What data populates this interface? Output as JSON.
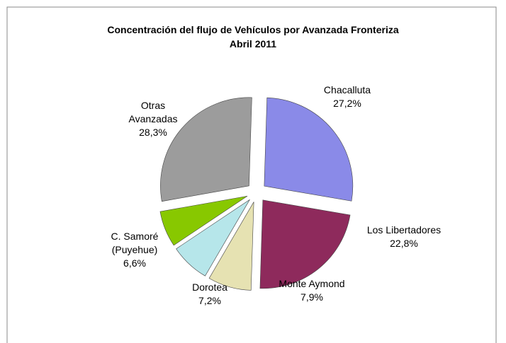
{
  "chart_data": {
    "type": "pie",
    "title": "Concentración del flujo de Vehículos por Avanzada Fronteriza",
    "subtitle": "Abril 2011",
    "categories": [
      "Chacalluta",
      "Los Libertadores",
      "Monte Aymond",
      "Dorotea",
      "C. Samoré (Puyehue)",
      "Otras Avanzadas"
    ],
    "values": [
      27.2,
      22.8,
      7.9,
      7.2,
      6.6,
      28.3
    ],
    "value_labels": [
      "27,2%",
      "22,8%",
      "7,9%",
      "7,2%",
      "6,6%",
      "28,3%"
    ],
    "colors": [
      "#8a8ae8",
      "#8e2a5c",
      "#e6e2b2",
      "#b6e6ea",
      "#88c800",
      "#9c9c9c"
    ]
  }
}
